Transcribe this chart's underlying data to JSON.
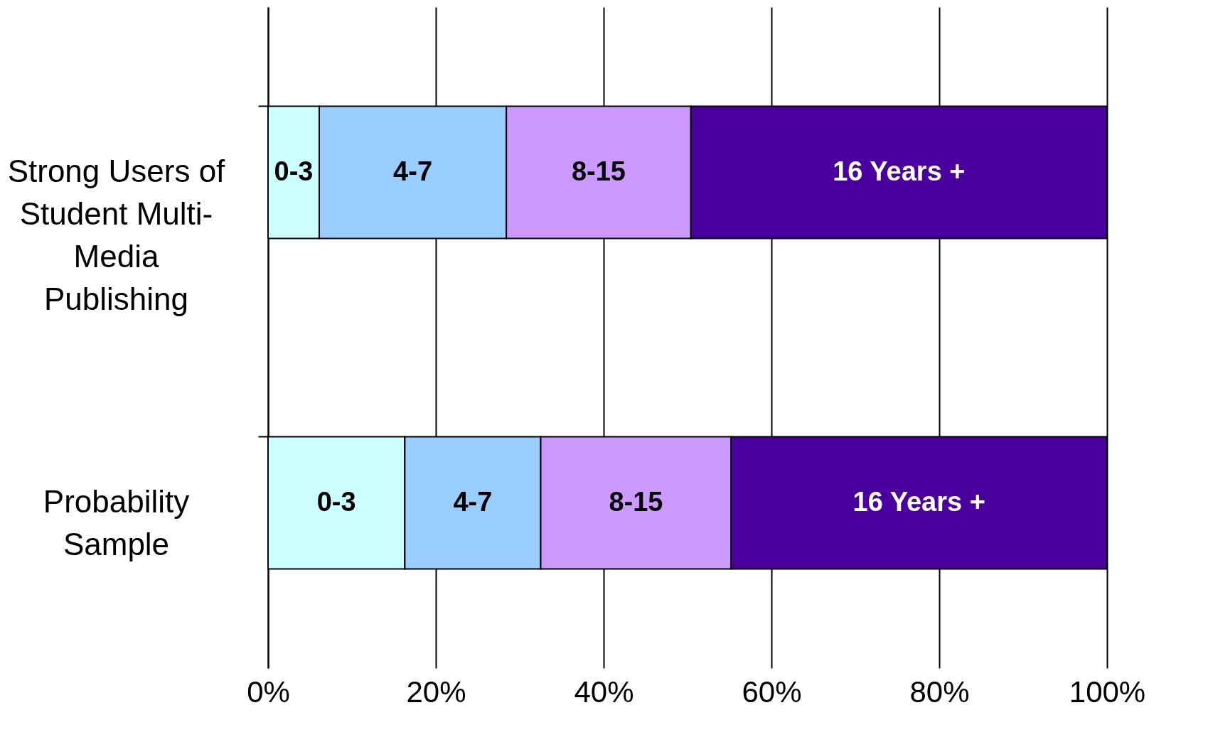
{
  "chart_data": {
    "type": "bar",
    "orientation": "horizontal",
    "stacked": true,
    "categories": [
      "Strong Users of Student Multi-Media Publishing",
      "Probability Sample"
    ],
    "series": [
      {
        "name": "0-3",
        "color": "#ccffff",
        "values": [
          6.1,
          16.3
        ]
      },
      {
        "name": "4-7",
        "color": "#99ccff",
        "values": [
          22.3,
          16.2
        ]
      },
      {
        "name": "8-15",
        "color": "#cc99ff",
        "values": [
          22.0,
          22.7
        ]
      },
      {
        "name": "16 Years +",
        "color": "#4b00a0",
        "values": [
          49.6,
          44.8
        ]
      }
    ],
    "xlim": [
      0,
      100
    ],
    "xticks": [
      {
        "value": 0,
        "label": "0%"
      },
      {
        "value": 20,
        "label": "20%"
      },
      {
        "value": 40,
        "label": "40%"
      },
      {
        "value": 60,
        "label": "60%"
      },
      {
        "value": 80,
        "label": "80%"
      },
      {
        "value": 100,
        "label": "100%"
      }
    ],
    "grid": "x"
  }
}
